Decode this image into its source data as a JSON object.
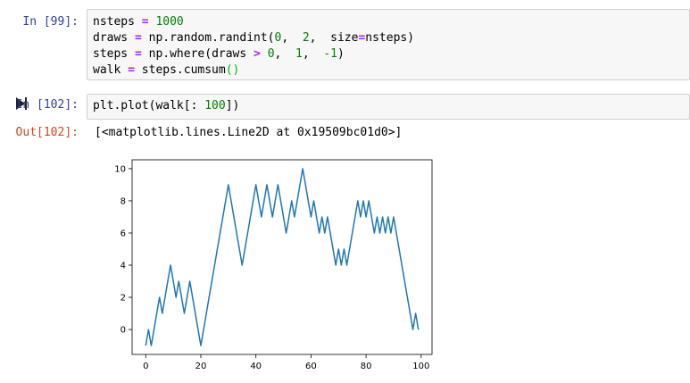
{
  "cells": [
    {
      "prompt": "In [99]:",
      "code": [
        {
          "parts": [
            [
              "nsteps ",
              "t"
            ],
            [
              "=",
              "o"
            ],
            [
              " ",
              "t"
            ],
            [
              "1000",
              "n"
            ]
          ]
        },
        {
          "parts": [
            [
              "draws ",
              "t"
            ],
            [
              "=",
              "o"
            ],
            [
              " np.random.randint(",
              "t"
            ],
            [
              "0",
              "n"
            ],
            [
              ",  ",
              "t"
            ],
            [
              "2",
              "n"
            ],
            [
              ",  size",
              "t"
            ],
            [
              "=",
              "o"
            ],
            [
              "nsteps)",
              "t"
            ]
          ]
        },
        {
          "parts": [
            [
              "steps ",
              "t"
            ],
            [
              "=",
              "o"
            ],
            [
              " np.where(draws ",
              "t"
            ],
            [
              ">",
              "o"
            ],
            [
              " ",
              "t"
            ],
            [
              "0",
              "n"
            ],
            [
              ",  ",
              "t"
            ],
            [
              "1",
              "n"
            ],
            [
              ",  ",
              "t"
            ],
            [
              "-1",
              "n"
            ],
            [
              ")",
              "t"
            ]
          ]
        },
        {
          "parts": [
            [
              "walk ",
              "t"
            ],
            [
              "=",
              "o"
            ],
            [
              " steps.cumsum",
              "t"
            ],
            [
              "()",
              "p"
            ]
          ]
        }
      ]
    },
    {
      "prompt": "In [102]:",
      "code": [
        {
          "parts": [
            [
              "plt.plot(walk[: ",
              "t"
            ],
            [
              "100",
              "n"
            ],
            [
              "])",
              "t"
            ]
          ]
        }
      ],
      "output_prompt": "Out[102]:",
      "output_text": "[<matplotlib.lines.Line2D at 0x19509bc01d0>]"
    }
  ],
  "chart_data": {
    "type": "line",
    "x": [
      0,
      1,
      2,
      3,
      4,
      5,
      6,
      7,
      8,
      9,
      10,
      11,
      12,
      13,
      14,
      15,
      16,
      17,
      18,
      19,
      20,
      21,
      22,
      23,
      24,
      25,
      26,
      27,
      28,
      29,
      30,
      31,
      32,
      33,
      34,
      35,
      36,
      37,
      38,
      39,
      40,
      41,
      42,
      43,
      44,
      45,
      46,
      47,
      48,
      49,
      50,
      51,
      52,
      53,
      54,
      55,
      56,
      57,
      58,
      59,
      60,
      61,
      62,
      63,
      64,
      65,
      66,
      67,
      68,
      69,
      70,
      71,
      72,
      73,
      74,
      75,
      76,
      77,
      78,
      79,
      80,
      81,
      82,
      83,
      84,
      85,
      86,
      87,
      88,
      89,
      90,
      91,
      92,
      93,
      94,
      95,
      96,
      97,
      98,
      99
    ],
    "series": [
      {
        "values": [
          -1,
          0,
          -1,
          0,
          1,
          2,
          1,
          2,
          3,
          4,
          3,
          2,
          3,
          2,
          1,
          2,
          3,
          2,
          1,
          0,
          -1,
          0,
          1,
          2,
          3,
          4,
          5,
          6,
          7,
          8,
          9,
          8,
          7,
          6,
          5,
          4,
          5,
          6,
          7,
          8,
          9,
          8,
          7,
          8,
          9,
          8,
          7,
          8,
          9,
          8,
          7,
          6,
          7,
          8,
          7,
          8,
          9,
          10,
          9,
          8,
          7,
          8,
          7,
          6,
          7,
          6,
          7,
          6,
          5,
          4,
          5,
          4,
          5,
          4,
          5,
          6,
          7,
          8,
          7,
          8,
          7,
          8,
          7,
          6,
          7,
          6,
          7,
          6,
          7,
          6,
          7,
          6,
          5,
          4,
          3,
          2,
          1,
          0,
          1,
          0
        ],
        "color": "#1f77b4"
      }
    ],
    "xticks": [
      0,
      20,
      40,
      60,
      80,
      100
    ],
    "yticks": [
      0,
      2,
      4,
      6,
      8,
      10
    ],
    "xlim": [
      -4.95,
      103.95
    ],
    "ylim": [
      -1.55,
      10.55
    ],
    "grid": false
  }
}
